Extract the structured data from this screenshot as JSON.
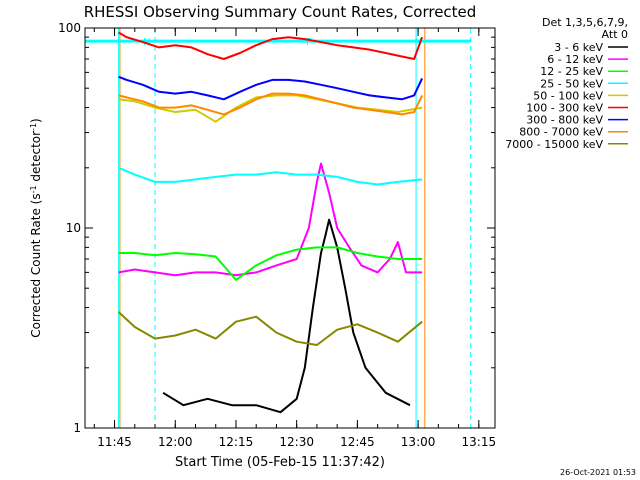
{
  "chart_data": {
    "type": "line",
    "title": "RHESSI Observing Summary Count Rates, Corrected",
    "xlabel": "Start Time (05-Feb-15 11:37:42)",
    "ylabel": "Corrected Count Rate (s",
    "ylabel_sup1": "-1",
    "ylabel_mid": " detector",
    "ylabel_sup2": "-1",
    "ylabel_end": ")",
    "yscale": "log",
    "ylim": [
      1,
      100
    ],
    "y_ticks": [
      {
        "value": 1,
        "label": "1"
      },
      {
        "value": 10,
        "label": "10"
      },
      {
        "value": 100,
        "label": "100"
      }
    ],
    "xlim": [
      "11:37:42",
      "13:19:00"
    ],
    "x_ticks": [
      "11:45",
      "12:00",
      "12:15",
      "12:30",
      "12:45",
      "13:00",
      "13:15"
    ],
    "legend": {
      "position": "right",
      "header1": "Det 1,3,5,6,7,9,",
      "header2": "Att 0"
    },
    "series": [
      {
        "name": "3 - 6 keV",
        "color": "#000000",
        "points": [
          [
            "11:57",
            1.5
          ],
          [
            "12:02",
            1.3
          ],
          [
            "12:08",
            1.4
          ],
          [
            "12:14",
            1.3
          ],
          [
            "12:20",
            1.3
          ],
          [
            "12:26",
            1.2
          ],
          [
            "12:30",
            1.4
          ],
          [
            "12:32",
            2.0
          ],
          [
            "12:34",
            4.0
          ],
          [
            "12:36",
            7.5
          ],
          [
            "12:37",
            9.0
          ],
          [
            "12:38",
            11.0
          ],
          [
            "12:40",
            8.0
          ],
          [
            "12:42",
            5.0
          ],
          [
            "12:44",
            3.0
          ],
          [
            "12:47",
            2.0
          ],
          [
            "12:52",
            1.5
          ],
          [
            "12:58",
            1.3
          ]
        ]
      },
      {
        "name": "6 - 12 keV",
        "color": "#ff00ff",
        "points": [
          [
            "11:46",
            6.0
          ],
          [
            "11:50",
            6.2
          ],
          [
            "11:55",
            6.0
          ],
          [
            "12:00",
            5.8
          ],
          [
            "12:05",
            6.0
          ],
          [
            "12:10",
            6.0
          ],
          [
            "12:15",
            5.8
          ],
          [
            "12:20",
            6.0
          ],
          [
            "12:25",
            6.5
          ],
          [
            "12:30",
            7.0
          ],
          [
            "12:33",
            10.0
          ],
          [
            "12:35",
            17.0
          ],
          [
            "12:36",
            21.0
          ],
          [
            "12:38",
            15.0
          ],
          [
            "12:40",
            10.0
          ],
          [
            "12:43",
            8.0
          ],
          [
            "12:46",
            6.5
          ],
          [
            "12:50",
            6.0
          ],
          [
            "12:53",
            7.0
          ],
          [
            "12:55",
            8.5
          ],
          [
            "12:57",
            6.0
          ],
          [
            "13:01",
            6.0
          ]
        ]
      },
      {
        "name": "12 - 25 keV",
        "color": "#00ff00",
        "points": [
          [
            "11:46",
            7.5
          ],
          [
            "11:50",
            7.5
          ],
          [
            "11:55",
            7.3
          ],
          [
            "12:00",
            7.5
          ],
          [
            "12:05",
            7.4
          ],
          [
            "12:10",
            7.2
          ],
          [
            "12:15",
            5.5
          ],
          [
            "12:20",
            6.5
          ],
          [
            "12:25",
            7.3
          ],
          [
            "12:30",
            7.8
          ],
          [
            "12:35",
            8.0
          ],
          [
            "12:40",
            8.0
          ],
          [
            "12:45",
            7.5
          ],
          [
            "12:50",
            7.2
          ],
          [
            "12:55",
            7.0
          ],
          [
            "13:01",
            7.0
          ]
        ]
      },
      {
        "name": "25 - 50 keV",
        "color": "#00ffff",
        "points": [
          [
            "11:46",
            20.0
          ],
          [
            "11:50",
            18.5
          ],
          [
            "11:55",
            17.0
          ],
          [
            "12:00",
            17.0
          ],
          [
            "12:05",
            17.5
          ],
          [
            "12:10",
            18.0
          ],
          [
            "12:15",
            18.5
          ],
          [
            "12:20",
            18.5
          ],
          [
            "12:25",
            19.0
          ],
          [
            "12:30",
            18.5
          ],
          [
            "12:35",
            18.5
          ],
          [
            "12:40",
            18.0
          ],
          [
            "12:45",
            17.0
          ],
          [
            "12:50",
            16.5
          ],
          [
            "12:55",
            17.0
          ],
          [
            "13:01",
            17.5
          ]
        ]
      },
      {
        "name": "50 - 100 keV",
        "color": "#cccc00",
        "points": [
          [
            "11:46",
            44.0
          ],
          [
            "11:50",
            43.0
          ],
          [
            "11:55",
            40.0
          ],
          [
            "12:00",
            38.0
          ],
          [
            "12:05",
            39.0
          ],
          [
            "12:10",
            34.0
          ],
          [
            "12:15",
            40.0
          ],
          [
            "12:20",
            45.0
          ],
          [
            "12:25",
            46.0
          ],
          [
            "12:30",
            46.0
          ],
          [
            "12:35",
            44.0
          ],
          [
            "12:40",
            42.0
          ],
          [
            "12:45",
            40.0
          ],
          [
            "12:50",
            39.0
          ],
          [
            "12:55",
            38.0
          ],
          [
            "13:01",
            40.0
          ]
        ]
      },
      {
        "name": "100 - 300 keV",
        "color": "#ff0000",
        "points": [
          [
            "11:46",
            95.0
          ],
          [
            "11:48",
            90.0
          ],
          [
            "11:52",
            85.0
          ],
          [
            "11:56",
            80.0
          ],
          [
            "12:00",
            82.0
          ],
          [
            "12:04",
            80.0
          ],
          [
            "12:08",
            74.0
          ],
          [
            "12:12",
            70.0
          ],
          [
            "12:16",
            75.0
          ],
          [
            "12:20",
            82.0
          ],
          [
            "12:24",
            88.0
          ],
          [
            "12:28",
            90.0
          ],
          [
            "12:32",
            88.0
          ],
          [
            "12:36",
            85.0
          ],
          [
            "12:40",
            82.0
          ],
          [
            "12:44",
            80.0
          ],
          [
            "12:48",
            78.0
          ],
          [
            "12:52",
            75.0
          ],
          [
            "12:56",
            72.0
          ],
          [
            "12:59",
            70.0
          ],
          [
            "13:01",
            90.0
          ]
        ]
      },
      {
        "name": "300 - 800 keV",
        "color": "#0000ff",
        "points": [
          [
            "11:46",
            57.0
          ],
          [
            "11:48",
            55.0
          ],
          [
            "11:52",
            52.0
          ],
          [
            "11:56",
            48.0
          ],
          [
            "12:00",
            47.0
          ],
          [
            "12:04",
            48.0
          ],
          [
            "12:08",
            46.0
          ],
          [
            "12:12",
            44.0
          ],
          [
            "12:16",
            48.0
          ],
          [
            "12:20",
            52.0
          ],
          [
            "12:24",
            55.0
          ],
          [
            "12:28",
            55.0
          ],
          [
            "12:32",
            54.0
          ],
          [
            "12:36",
            52.0
          ],
          [
            "12:40",
            50.0
          ],
          [
            "12:44",
            48.0
          ],
          [
            "12:48",
            46.0
          ],
          [
            "12:52",
            45.0
          ],
          [
            "12:56",
            44.0
          ],
          [
            "12:59",
            46.0
          ],
          [
            "13:01",
            56.0
          ]
        ]
      },
      {
        "name": "800 - 7000 keV",
        "color": "#ff8800",
        "points": [
          [
            "11:46",
            46.0
          ],
          [
            "11:48",
            45.0
          ],
          [
            "11:52",
            43.0
          ],
          [
            "11:56",
            40.0
          ],
          [
            "12:00",
            40.0
          ],
          [
            "12:04",
            41.0
          ],
          [
            "12:08",
            39.0
          ],
          [
            "12:12",
            37.0
          ],
          [
            "12:16",
            40.0
          ],
          [
            "12:20",
            44.0
          ],
          [
            "12:24",
            47.0
          ],
          [
            "12:28",
            47.0
          ],
          [
            "12:32",
            46.0
          ],
          [
            "12:36",
            44.0
          ],
          [
            "12:40",
            42.0
          ],
          [
            "12:44",
            40.0
          ],
          [
            "12:48",
            39.0
          ],
          [
            "12:52",
            38.0
          ],
          [
            "12:56",
            37.0
          ],
          [
            "12:59",
            38.0
          ],
          [
            "13:01",
            46.0
          ]
        ]
      },
      {
        "name": "7000 - 15000 keV",
        "color": "#888800",
        "points": [
          [
            "11:46",
            3.8
          ],
          [
            "11:50",
            3.2
          ],
          [
            "11:55",
            2.8
          ],
          [
            "12:00",
            2.9
          ],
          [
            "12:05",
            3.1
          ],
          [
            "12:10",
            2.8
          ],
          [
            "12:15",
            3.4
          ],
          [
            "12:20",
            3.6
          ],
          [
            "12:25",
            3.0
          ],
          [
            "12:30",
            2.7
          ],
          [
            "12:35",
            2.6
          ],
          [
            "12:40",
            3.1
          ],
          [
            "12:45",
            3.3
          ],
          [
            "12:50",
            3.0
          ],
          [
            "12:55",
            2.7
          ],
          [
            "13:01",
            3.4
          ]
        ]
      }
    ],
    "attenuator_level": {
      "color": "#00ffff",
      "value": 86.0,
      "markers": [
        "N",
        "F",
        "N"
      ]
    },
    "vertical_lines": [
      {
        "time": "11:46:00",
        "color": "#00ffff",
        "style": "solid"
      },
      {
        "time": "11:46:20",
        "color": "#ff8800",
        "style": "solid"
      },
      {
        "time": "11:55:00",
        "color": "#00ffff",
        "style": "dashed"
      },
      {
        "time": "12:59:30",
        "color": "#00ffff",
        "style": "solid"
      },
      {
        "time": "13:01:40",
        "color": "#ff8800",
        "style": "solid"
      },
      {
        "time": "13:13:00",
        "color": "#00ffff",
        "style": "dashed"
      }
    ]
  },
  "footer": {
    "timestamp": "26-Oct-2021 01:53"
  }
}
